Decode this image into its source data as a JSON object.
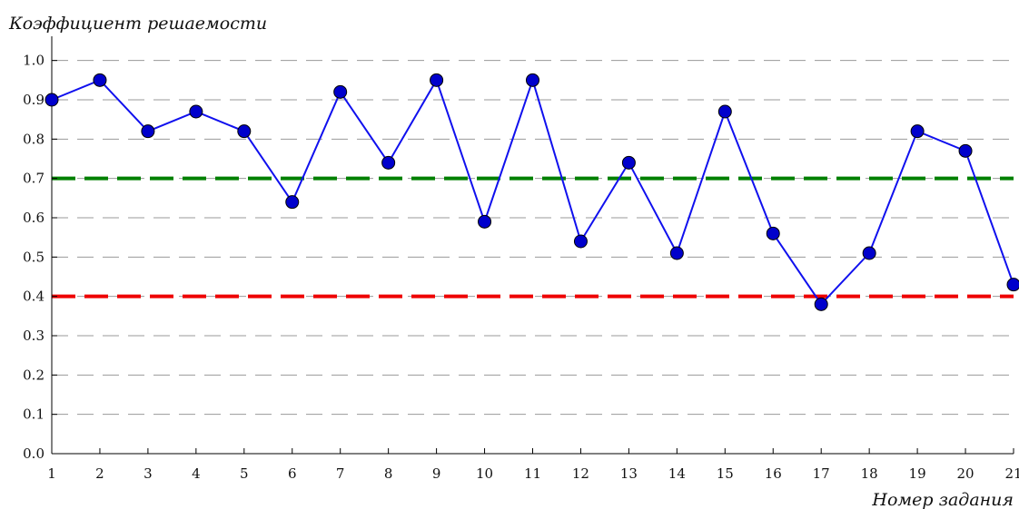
{
  "chart_data": {
    "type": "line",
    "title": "",
    "xlabel": "Номер задания",
    "ylabel": "Коэффициент решаемости",
    "x": [
      1,
      2,
      3,
      4,
      5,
      6,
      7,
      8,
      9,
      10,
      11,
      12,
      13,
      14,
      15,
      16,
      17,
      18,
      19,
      20,
      21
    ],
    "x_tick_labels": [
      "1",
      "2",
      "3",
      "4",
      "5",
      "6",
      "7",
      "8",
      "9",
      "10",
      "11",
      "12",
      "13",
      "14",
      "15",
      "16",
      "17",
      "18",
      "19",
      "20",
      "21"
    ],
    "y_tick_labels": [
      "0.0",
      "0.1",
      "0.2",
      "0.3",
      "0.4",
      "0.5",
      "0.6",
      "0.7",
      "0.8",
      "0.9",
      "1.0"
    ],
    "xlim": [
      1,
      21
    ],
    "ylim": [
      0,
      1.05
    ],
    "grid": "horizontal-dashed",
    "series": [
      {
        "color": "#1010ee",
        "marker_color": "#0000cc",
        "values": [
          0.9,
          0.95,
          0.82,
          0.87,
          0.82,
          0.64,
          0.92,
          0.74,
          0.95,
          0.59,
          0.95,
          0.54,
          0.74,
          0.51,
          0.87,
          0.56,
          0.38,
          0.51,
          0.82,
          0.77,
          0.43
        ]
      }
    ],
    "reference_lines": [
      {
        "y": 0.7,
        "color": "#008000",
        "style": "dashed"
      },
      {
        "y": 0.4,
        "color": "#ee0000",
        "style": "dashed"
      }
    ]
  }
}
